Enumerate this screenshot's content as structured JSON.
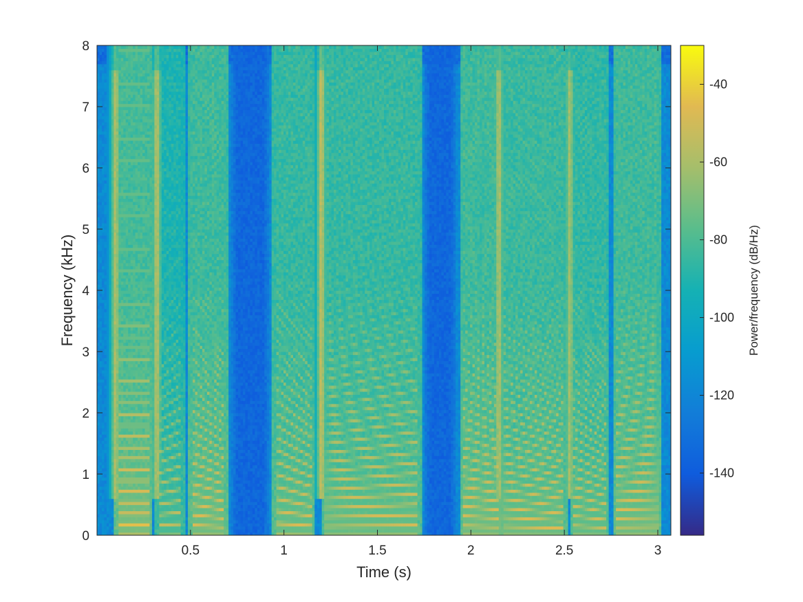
{
  "chart_data": {
    "type": "heatmap",
    "title": "",
    "xlabel": "Time (s)",
    "ylabel": "Frequency (kHz)",
    "xlim": [
      0,
      3.07
    ],
    "ylim": [
      0,
      8
    ],
    "x_ticks": [
      0.5,
      1,
      1.5,
      2,
      2.5,
      3
    ],
    "x_tick_labels": [
      "0.5",
      "1",
      "1.5",
      "2",
      "2.5",
      "3"
    ],
    "y_ticks": [
      0,
      1,
      2,
      3,
      4,
      5,
      6,
      7,
      8
    ],
    "y_tick_labels": [
      "0",
      "1",
      "2",
      "3",
      "4",
      "5",
      "6",
      "7",
      "8"
    ],
    "colormap": "parula",
    "colorbar": {
      "label": "Power/frequency (dB/Hz)",
      "range": [
        -156,
        -30
      ],
      "ticks": [
        -140,
        -120,
        -100,
        -80,
        -60,
        -40
      ],
      "tick_labels": [
        "-140",
        "-120",
        "-100",
        "-80",
        "-60",
        "-40"
      ]
    },
    "voiced_segments": [
      {
        "t0": 0.11,
        "t1": 0.28,
        "f0_start": 0.18,
        "f0_end": 0.18,
        "level": -42
      },
      {
        "t0": 0.33,
        "t1": 0.45,
        "f0_start": 0.17,
        "f0_end": 0.19,
        "level": -52
      },
      {
        "t0": 0.51,
        "t1": 0.68,
        "f0_start": 0.17,
        "f0_end": 0.14,
        "level": -44
      },
      {
        "t0": 0.96,
        "t1": 1.15,
        "f0_start": 0.2,
        "f0_end": 0.16,
        "level": -46
      },
      {
        "t0": 1.22,
        "t1": 1.72,
        "f0_start": 0.15,
        "f0_end": 0.17,
        "level": -46
      },
      {
        "t0": 1.96,
        "t1": 2.15,
        "f0_start": 0.16,
        "f0_end": 0.14,
        "level": -44
      },
      {
        "t0": 2.17,
        "t1": 2.5,
        "f0_start": 0.15,
        "f0_end": 0.12,
        "level": -45
      },
      {
        "t0": 2.55,
        "t1": 2.72,
        "f0_start": 0.16,
        "f0_end": 0.13,
        "level": -47
      },
      {
        "t0": 2.78,
        "t1": 3.0,
        "f0_start": 0.14,
        "f0_end": 0.15,
        "level": -44
      }
    ],
    "fricative_bands": [
      {
        "t": 0.1,
        "level": -55
      },
      {
        "t": 0.32,
        "level": -53
      },
      {
        "t": 1.2,
        "level": -50
      },
      {
        "t": 2.15,
        "level": -55
      },
      {
        "t": 2.53,
        "level": -58
      }
    ],
    "background_level": -118,
    "silence_regions": [
      [
        0.72,
        0.92
      ],
      [
        1.75,
        1.92
      ]
    ],
    "silence_level": -135
  }
}
